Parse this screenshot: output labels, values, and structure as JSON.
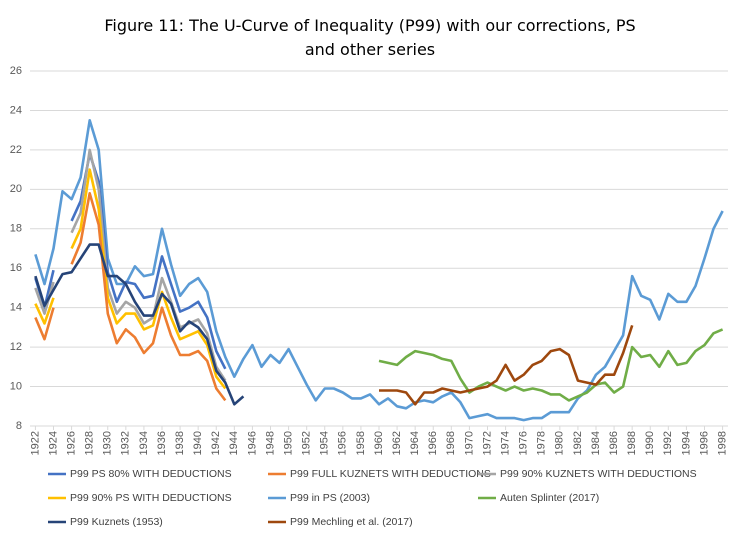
{
  "chart_data": {
    "type": "line",
    "title": "Figure 11: The U-Curve of Inequality (P99) with our corrections, PS and other series",
    "xlim": [
      1921.4,
      1998.6
    ],
    "xticks": [
      1922,
      1924,
      1926,
      1928,
      1930,
      1932,
      1934,
      1936,
      1938,
      1940,
      1942,
      1944,
      1946,
      1948,
      1950,
      1952,
      1954,
      1956,
      1958,
      1960,
      1962,
      1964,
      1966,
      1968,
      1970,
      1972,
      1974,
      1976,
      1978,
      1980,
      1982,
      1984,
      1986,
      1988,
      1990,
      1992,
      1994,
      1996,
      1998
    ],
    "ylim": [
      8,
      26
    ],
    "yticks": [
      8,
      10,
      12,
      14,
      16,
      18,
      20,
      22,
      24,
      26
    ],
    "grid": true,
    "series": [
      {
        "name": "P99 PS 80% WITH DEDUCTIONS",
        "color": "#4472c4",
        "x": [
          1922,
          1923,
          1924,
          1925,
          1926,
          1927,
          1928,
          1929,
          1930,
          1931,
          1932,
          1933,
          1934,
          1935,
          1936,
          1937,
          1938,
          1939,
          1940,
          1941,
          1942,
          1943
        ],
        "values": [
          15.5,
          14.0,
          15.9,
          null,
          18.4,
          19.4,
          21.8,
          20.4,
          15.8,
          14.3,
          15.3,
          15.2,
          14.5,
          14.6,
          16.6,
          15.2,
          13.8,
          14.0,
          14.3,
          13.5,
          11.8,
          10.9
        ]
      },
      {
        "name": "P99 FULL KUZNETS WITH DEDUCTIONS",
        "color": "#ed7d31",
        "x": [
          1922,
          1923,
          1924,
          1925,
          1926,
          1927,
          1928,
          1929,
          1930,
          1931,
          1932,
          1933,
          1934,
          1935,
          1936,
          1937,
          1938,
          1939,
          1940,
          1941,
          1942,
          1943
        ],
        "values": [
          13.5,
          12.4,
          14.0,
          null,
          16.2,
          17.3,
          19.8,
          18.2,
          13.7,
          12.2,
          12.9,
          12.5,
          11.7,
          12.2,
          14.0,
          12.6,
          11.6,
          11.6,
          11.8,
          11.3,
          9.9,
          9.3
        ]
      },
      {
        "name": "P99 90% KUZNETS WITH DEDUCTIONS",
        "color": "#a5a5a5",
        "x": [
          1922,
          1923,
          1924,
          1925,
          1926,
          1927,
          1928,
          1929,
          1930,
          1931,
          1932,
          1933,
          1934,
          1935,
          1936,
          1937,
          1938,
          1939,
          1940,
          1941,
          1942,
          1943
        ],
        "values": [
          15.0,
          13.7,
          15.3,
          null,
          17.8,
          18.8,
          22.0,
          20.0,
          15.0,
          13.7,
          14.3,
          14.0,
          13.2,
          13.5,
          15.5,
          14.3,
          13.0,
          13.2,
          13.4,
          12.7,
          11.0,
          10.3
        ]
      },
      {
        "name": "P99 90% PS WITH DEDUCTIONS",
        "color": "#ffc000",
        "x": [
          1922,
          1923,
          1924,
          1925,
          1926,
          1927,
          1928,
          1929,
          1930,
          1931,
          1932,
          1933,
          1934,
          1935,
          1936,
          1937,
          1938,
          1939,
          1940,
          1941,
          1942,
          1943
        ],
        "values": [
          14.2,
          13.2,
          14.5,
          null,
          17.0,
          18.0,
          21.0,
          19.0,
          14.5,
          13.2,
          13.7,
          13.7,
          12.9,
          13.1,
          14.8,
          13.5,
          12.4,
          12.6,
          12.8,
          12.1,
          10.5,
          9.9
        ]
      },
      {
        "name": "P99 in PS (2003)",
        "color": "#5b9bd5",
        "x": [
          1922,
          1923,
          1924,
          1925,
          1926,
          1927,
          1928,
          1929,
          1930,
          1931,
          1932,
          1933,
          1934,
          1935,
          1936,
          1937,
          1938,
          1939,
          1940,
          1941,
          1942,
          1943,
          1944,
          1945,
          1946,
          1947,
          1948,
          1949,
          1950,
          1951,
          1952,
          1953,
          1954,
          1955,
          1956,
          1957,
          1958,
          1959,
          1960,
          1961,
          1962,
          1963,
          1964,
          1965,
          1966,
          1967,
          1968,
          1969,
          1970,
          1971,
          1972,
          1973,
          1974,
          1975,
          1976,
          1977,
          1978,
          1979,
          1980,
          1981,
          1982,
          1983,
          1984,
          1985,
          1986,
          1987,
          1988,
          1989,
          1990,
          1991,
          1992,
          1993,
          1994,
          1995,
          1996,
          1997,
          1998
        ],
        "values": [
          16.7,
          15.2,
          17.0,
          19.9,
          19.5,
          20.6,
          23.5,
          22.0,
          16.5,
          15.2,
          15.2,
          16.1,
          15.6,
          15.7,
          18.0,
          16.2,
          14.6,
          15.2,
          15.5,
          14.8,
          12.8,
          11.5,
          10.5,
          11.4,
          12.1,
          11.0,
          11.6,
          11.2,
          11.9,
          11.0,
          10.1,
          9.3,
          9.9,
          9.9,
          9.7,
          9.4,
          9.4,
          9.6,
          9.1,
          9.4,
          9.0,
          8.9,
          9.2,
          9.3,
          9.2,
          9.5,
          9.7,
          9.2,
          8.4,
          8.5,
          8.6,
          8.4,
          8.4,
          8.4,
          8.3,
          8.4,
          8.4,
          8.7,
          8.7,
          8.7,
          9.4,
          9.8,
          10.6,
          11.0,
          11.8,
          12.6,
          15.6,
          14.6,
          14.4,
          13.4,
          14.7,
          14.3,
          14.3,
          15.1,
          16.5,
          18.0,
          18.9
        ]
      },
      {
        "name": "Auten Splinter (2017)",
        "color": "#70ad47",
        "x": [
          1960,
          1961,
          1962,
          1963,
          1964,
          1965,
          1966,
          1967,
          1968,
          1969,
          1970,
          1971,
          1972,
          1973,
          1974,
          1975,
          1976,
          1977,
          1978,
          1979,
          1980,
          1981,
          1982,
          1983,
          1984,
          1985,
          1986,
          1987,
          1988,
          1989,
          1990,
          1991,
          1992,
          1993,
          1994,
          1995,
          1996,
          1997,
          1998
        ],
        "values": [
          11.3,
          11.2,
          11.1,
          11.5,
          11.8,
          11.7,
          11.6,
          11.4,
          11.3,
          10.4,
          9.7,
          10.0,
          10.2,
          10.0,
          9.8,
          10.0,
          9.8,
          9.9,
          9.8,
          9.6,
          9.6,
          9.3,
          9.5,
          9.7,
          10.1,
          10.2,
          9.7,
          10.0,
          12.0,
          11.5,
          11.6,
          11.0,
          11.8,
          11.1,
          11.2,
          11.8,
          12.1,
          12.7,
          12.9
        ]
      },
      {
        "name": "P99 Kuznets (1953)",
        "color": "#264478",
        "x": [
          1922,
          1923,
          1924,
          1925,
          1926,
          1927,
          1928,
          1929,
          1930,
          1931,
          1932,
          1933,
          1934,
          1935,
          1936,
          1937,
          1938,
          1939,
          1940,
          1941,
          1942,
          1943,
          1944,
          1945
        ],
        "values": [
          15.6,
          14.1,
          14.9,
          15.7,
          15.8,
          16.5,
          17.2,
          17.2,
          15.6,
          15.6,
          15.2,
          14.3,
          13.6,
          13.6,
          14.7,
          14.2,
          12.8,
          13.3,
          13.0,
          12.4,
          10.8,
          10.2,
          9.1,
          9.5
        ]
      },
      {
        "name": "P99 Mechling et al. (2017)",
        "color": "#9e480e",
        "x": [
          1960,
          1961,
          1962,
          1963,
          1964,
          1965,
          1966,
          1967,
          1968,
          1969,
          1970,
          1971,
          1972,
          1973,
          1974,
          1975,
          1976,
          1977,
          1978,
          1979,
          1980,
          1981,
          1982,
          1983,
          1984,
          1985,
          1986,
          1987,
          1988
        ],
        "values": [
          9.8,
          9.8,
          9.8,
          9.7,
          9.1,
          9.7,
          9.7,
          9.9,
          9.8,
          9.7,
          9.8,
          9.9,
          10.0,
          10.3,
          11.1,
          10.3,
          10.6,
          11.1,
          11.3,
          11.8,
          11.9,
          11.6,
          10.3,
          10.2,
          10.1,
          10.6,
          10.6,
          11.7,
          13.1
        ]
      }
    ]
  }
}
